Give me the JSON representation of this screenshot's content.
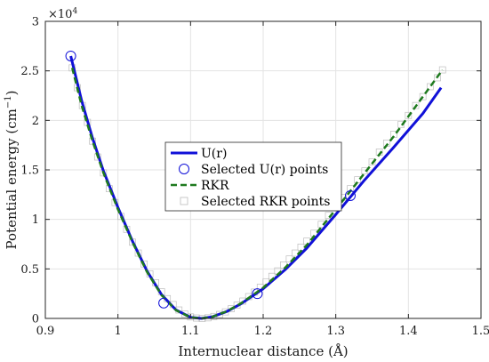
{
  "chart_data": {
    "type": "line",
    "xlabel": "Internuclear distance (Å)",
    "ylabel": "Potential energy (cm",
    "ylabel_sup": "−1",
    "ylabel_close": ")",
    "y_multiplier_label": "×10",
    "y_multiplier_exp": "4",
    "xlim": [
      0.9,
      1.5
    ],
    "ylim": [
      0,
      3
    ],
    "x_ticks": [
      0.9,
      1.0,
      1.1,
      1.2,
      1.3,
      1.4,
      1.5
    ],
    "x_tick_labels": [
      "0.9",
      "1",
      "1.1",
      "1.2",
      "1.3",
      "1.4",
      "1.5"
    ],
    "y_ticks": [
      0,
      0.5,
      1,
      1.5,
      2,
      2.5,
      3
    ],
    "y_tick_labels": [
      "0",
      "0.5",
      "1",
      "1.5",
      "2",
      "2.5",
      "3"
    ],
    "grid": true,
    "legend_position": "center",
    "series": [
      {
        "name": "U(r)",
        "style": "solid-line",
        "color": "#1010d8",
        "x": [
          0.935,
          0.95,
          0.965,
          0.98,
          1.0,
          1.02,
          1.04,
          1.06,
          1.08,
          1.1,
          1.115,
          1.13,
          1.15,
          1.17,
          1.2,
          1.23,
          1.26,
          1.3,
          1.34,
          1.38,
          1.42,
          1.445
        ],
        "y": [
          2.65,
          2.2,
          1.82,
          1.49,
          1.12,
          0.78,
          0.48,
          0.24,
          0.085,
          0.012,
          0.0,
          0.016,
          0.07,
          0.15,
          0.3,
          0.49,
          0.71,
          1.05,
          1.4,
          1.73,
          2.07,
          2.33
        ]
      },
      {
        "name": "Selected U(r) points",
        "style": "open-circle",
        "color": "#1010d8",
        "x": [
          0.935,
          1.063,
          1.192,
          1.32
        ],
        "y": [
          2.65,
          0.155,
          0.25,
          1.24
        ]
      },
      {
        "name": "RKR",
        "style": "dashed-line",
        "color": "#1e7a1e",
        "x": [
          0.937,
          0.95,
          0.965,
          0.98,
          1.0,
          1.02,
          1.04,
          1.06,
          1.08,
          1.1,
          1.115,
          1.13,
          1.15,
          1.17,
          1.2,
          1.23,
          1.26,
          1.3,
          1.34,
          1.38,
          1.42,
          1.447
        ],
        "y": [
          2.53,
          2.15,
          1.79,
          1.47,
          1.1,
          0.77,
          0.47,
          0.235,
          0.083,
          0.011,
          0.0,
          0.016,
          0.072,
          0.155,
          0.31,
          0.51,
          0.74,
          1.1,
          1.47,
          1.84,
          2.24,
          2.51
        ]
      },
      {
        "name": "Selected RKR points",
        "style": "open-square",
        "color": "#bdbdbd",
        "x": [
          0.937,
          0.944,
          0.951,
          0.958,
          0.965,
          0.972,
          0.98,
          0.988,
          0.996,
          1.004,
          1.012,
          1.02,
          1.028,
          1.036,
          1.044,
          1.052,
          1.06,
          1.068,
          1.076,
          1.084,
          1.092,
          1.1,
          1.108,
          1.116,
          1.124,
          1.132,
          1.14,
          1.148,
          1.156,
          1.164,
          1.172,
          1.18,
          1.188,
          1.196,
          1.204,
          1.212,
          1.22,
          1.228,
          1.236,
          1.244,
          1.252,
          1.26,
          1.27,
          1.28,
          1.29,
          1.3,
          1.31,
          1.32,
          1.33,
          1.34,
          1.35,
          1.36,
          1.37,
          1.38,
          1.39,
          1.4,
          1.41,
          1.42,
          1.43,
          1.44,
          1.447
        ],
        "y": [
          2.53,
          2.33,
          2.15,
          1.98,
          1.79,
          1.63,
          1.47,
          1.31,
          1.17,
          1.03,
          0.9,
          0.77,
          0.66,
          0.55,
          0.45,
          0.36,
          0.27,
          0.2,
          0.14,
          0.085,
          0.045,
          0.015,
          0.004,
          0.0,
          0.006,
          0.02,
          0.04,
          0.066,
          0.098,
          0.134,
          0.175,
          0.22,
          0.266,
          0.315,
          0.37,
          0.425,
          0.48,
          0.54,
          0.6,
          0.66,
          0.72,
          0.78,
          0.86,
          0.95,
          1.04,
          1.13,
          1.22,
          1.31,
          1.4,
          1.49,
          1.58,
          1.68,
          1.77,
          1.86,
          1.96,
          2.05,
          2.15,
          2.24,
          2.34,
          2.43,
          2.51
        ]
      }
    ]
  },
  "colors": {
    "background": "#ffffff",
    "grid": "#e3e3e3",
    "axis": "#262626",
    "u_line": "#1010d8",
    "rkr_line": "#1e7a1e",
    "rkr_points": "#bdbdbd"
  }
}
